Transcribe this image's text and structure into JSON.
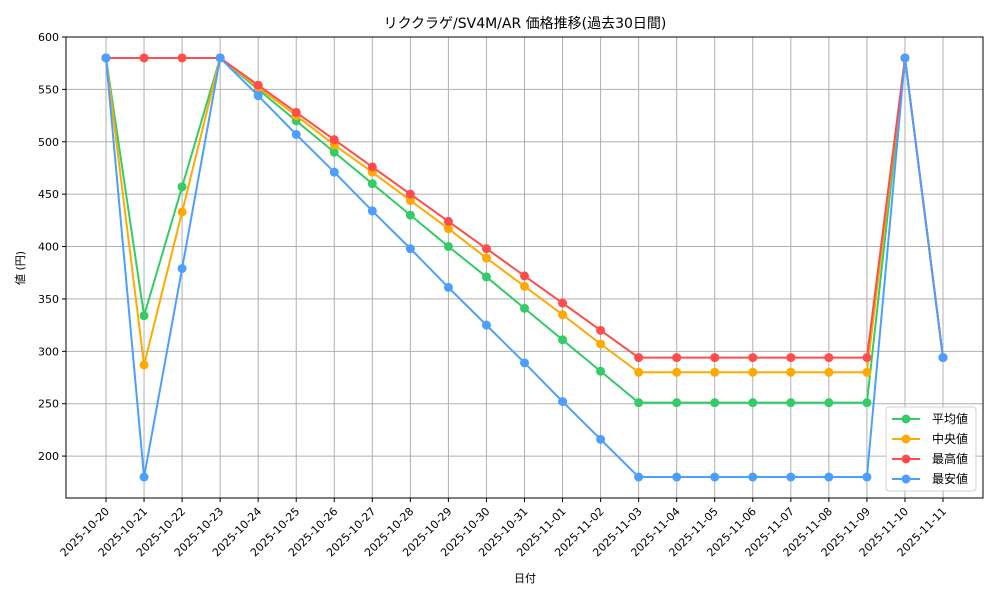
{
  "chart_data": {
    "type": "line",
    "title": "リククラゲ/SV4M/AR 価格推移(過去30日間)",
    "xlabel": "日付",
    "ylabel": "値 (円)",
    "ylim": [
      160,
      600
    ],
    "yticks": [
      200,
      250,
      300,
      350,
      400,
      450,
      500,
      550,
      600
    ],
    "grid": true,
    "legend_position": "lower right",
    "x": [
      "2025-10-20",
      "2025-10-21",
      "2025-10-22",
      "2025-10-23",
      "2025-10-24",
      "2025-10-25",
      "2025-10-26",
      "2025-10-27",
      "2025-10-28",
      "2025-10-29",
      "2025-10-30",
      "2025-10-31",
      "2025-11-01",
      "2025-11-02",
      "2025-11-03",
      "2025-11-04",
      "2025-11-05",
      "2025-11-06",
      "2025-11-07",
      "2025-11-08",
      "2025-11-09",
      "2025-11-10",
      "2025-11-11"
    ],
    "series": [
      {
        "name": "平均値",
        "color": "#33cc66",
        "values": [
          580,
          334,
          457,
          580,
          550,
          520,
          490,
          460,
          430,
          400,
          371,
          341,
          311,
          281,
          251,
          251,
          251,
          251,
          251,
          251,
          251,
          580,
          294
        ]
      },
      {
        "name": "中央値",
        "color": "#ffaa00",
        "values": [
          580,
          287,
          433,
          580,
          552,
          525,
          497,
          471,
          444,
          417,
          389,
          362,
          335,
          307,
          280,
          280,
          280,
          280,
          280,
          280,
          280,
          580,
          294
        ]
      },
      {
        "name": "最高値",
        "color": "#ff4d4d",
        "values": [
          580,
          580,
          580,
          580,
          554,
          528,
          502,
          476,
          450,
          424,
          398,
          372,
          346,
          320,
          294,
          294,
          294,
          294,
          294,
          294,
          294,
          580,
          294
        ]
      },
      {
        "name": "最安値",
        "color": "#4d9fff",
        "values": [
          580,
          180,
          379,
          580,
          544,
          507,
          471,
          434,
          398,
          361,
          325,
          289,
          252,
          216,
          180,
          180,
          180,
          180,
          180,
          180,
          180,
          580,
          294
        ]
      }
    ]
  }
}
